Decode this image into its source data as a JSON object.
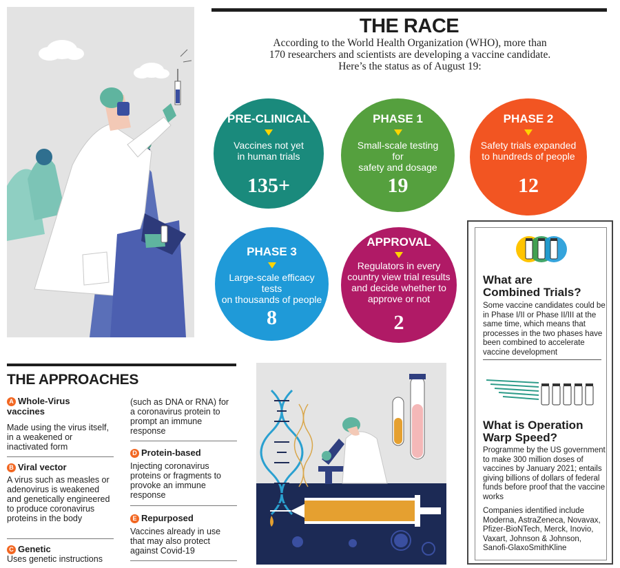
{
  "race": {
    "title": "THE RACE",
    "intro_line1": "According to the World Health Organization (WHO), more than",
    "intro_line2": "170 researchers and scientists are developing a vaccine candidate.",
    "intro_line3": "Here’s the status as of August 19:"
  },
  "stages": [
    {
      "label": "PRE-CLINICAL",
      "desc_line1": "Vaccines not yet",
      "desc_line2": "in human trials",
      "desc_line3": "",
      "count": "135+",
      "color": "#1a8a7c"
    },
    {
      "label": "PHASE 1",
      "desc_line1": "Small-scale testing for",
      "desc_line2": "safety and dosage",
      "desc_line3": "",
      "count": "19",
      "color": "#55a03e"
    },
    {
      "label": "PHASE 2",
      "desc_line1": "Safety trials expanded",
      "desc_line2": "to hundreds of people",
      "desc_line3": "",
      "count": "12",
      "color": "#f25522"
    },
    {
      "label": "PHASE 3",
      "desc_line1": "Large-scale efficacy tests",
      "desc_line2": "on thousands of people",
      "desc_line3": "",
      "count": "8",
      "color": "#1f9ad8"
    },
    {
      "label": "APPROVAL",
      "desc_line1": "Regulators in every",
      "desc_line2": "country view trial results",
      "desc_line3": "and decide whether to",
      "desc_line4": "approve or not",
      "count": "2",
      "color": "#b01a66"
    }
  ],
  "sidebar": {
    "combined_title_line1": "What are",
    "combined_title_line2": "Combined Trials?",
    "combined_text": "Some vaccine candidates could be in Phase I/II or Phase II/III at the same time, which means that processes in the two phases have been combined to accelerate vaccine development",
    "warp_title_line1": "What is Operation",
    "warp_title_line2": "Warp Speed?",
    "warp_text": "Programme by the US government to make 300 million doses of vaccines by January 2021; entails giving billions of dollars of federal funds before proof that the vaccine works",
    "companies_text": "Companies identified include Moderna, AstraZeneca, Novavax, Pfizer-BioNTech, Merck, Inovio, Vaxart, Johnson & Johnson, Sanofi-GlaxoSmithKline"
  },
  "approaches": {
    "title": "THE APPROACHES",
    "items": [
      {
        "letter": "A",
        "name_line1": "Whole-Virus",
        "name_line2": "vaccines",
        "text": "Made using the virus itself, in a weakened or inactivated form"
      },
      {
        "letter": "B",
        "name_line1": "Viral vector",
        "text": "A virus such as measles or adenovirus is weakened and genetically engineered to produce coronavirus proteins in the body"
      },
      {
        "letter": "C",
        "name_line1": "Genetic",
        "text": "Uses genetic instructions"
      },
      {
        "letter": "",
        "text": "(such as DNA or RNA) for a coronavirus protein to prompt an immune response"
      },
      {
        "letter": "D",
        "name_line1": "Protein-based",
        "text": "Injecting coronavirus proteins or fragments to provoke an immune response"
      },
      {
        "letter": "E",
        "name_line1": "Repurposed",
        "text": "Vaccines already in use that may also protect against Covid-19"
      }
    ]
  },
  "colors": {
    "accent_orange": "#f26722",
    "arrow_yellow": "#ffd400"
  }
}
